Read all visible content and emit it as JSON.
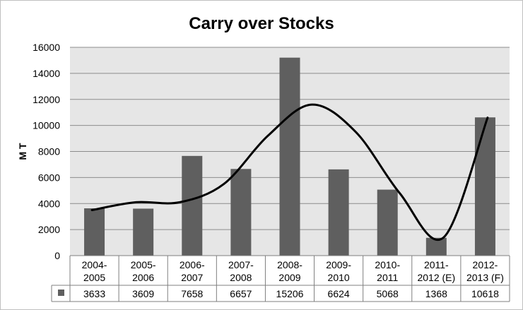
{
  "chart_data": {
    "type": "bar",
    "title": "Carry over Stocks",
    "ylabel": "M T",
    "xlabel": "",
    "ylim": [
      0,
      16000
    ],
    "yticks": [
      0,
      2000,
      4000,
      6000,
      8000,
      10000,
      12000,
      14000,
      16000
    ],
    "categories": [
      [
        "2004-",
        "2005"
      ],
      [
        "2005-",
        "2006"
      ],
      [
        "2006-",
        "2007"
      ],
      [
        "2007-",
        "2008"
      ],
      [
        "2008-",
        "2009"
      ],
      [
        "2009-",
        "2010"
      ],
      [
        "2010-",
        "2011"
      ],
      [
        "2011-",
        "2012 (E)"
      ],
      [
        "2012-",
        "2013 (F)"
      ]
    ],
    "series": [
      {
        "values": [
          3633,
          3609,
          7658,
          6657,
          15206,
          6624,
          5068,
          1368,
          10618
        ],
        "color": "#5f5f5f"
      }
    ],
    "trendline": {
      "type": "polynomial",
      "color": "#000000",
      "points": [
        3500,
        4100,
        4100,
        5500,
        9200,
        11600,
        9500,
        4800,
        1400,
        10600
      ]
    },
    "data_table": {
      "shown": true,
      "values": [
        "3633",
        "3609",
        "7658",
        "6657",
        "15206",
        "6624",
        "5068",
        "1368",
        "10618"
      ]
    },
    "grid": true,
    "legend": "none",
    "plot_background": "#e6e6e6"
  }
}
